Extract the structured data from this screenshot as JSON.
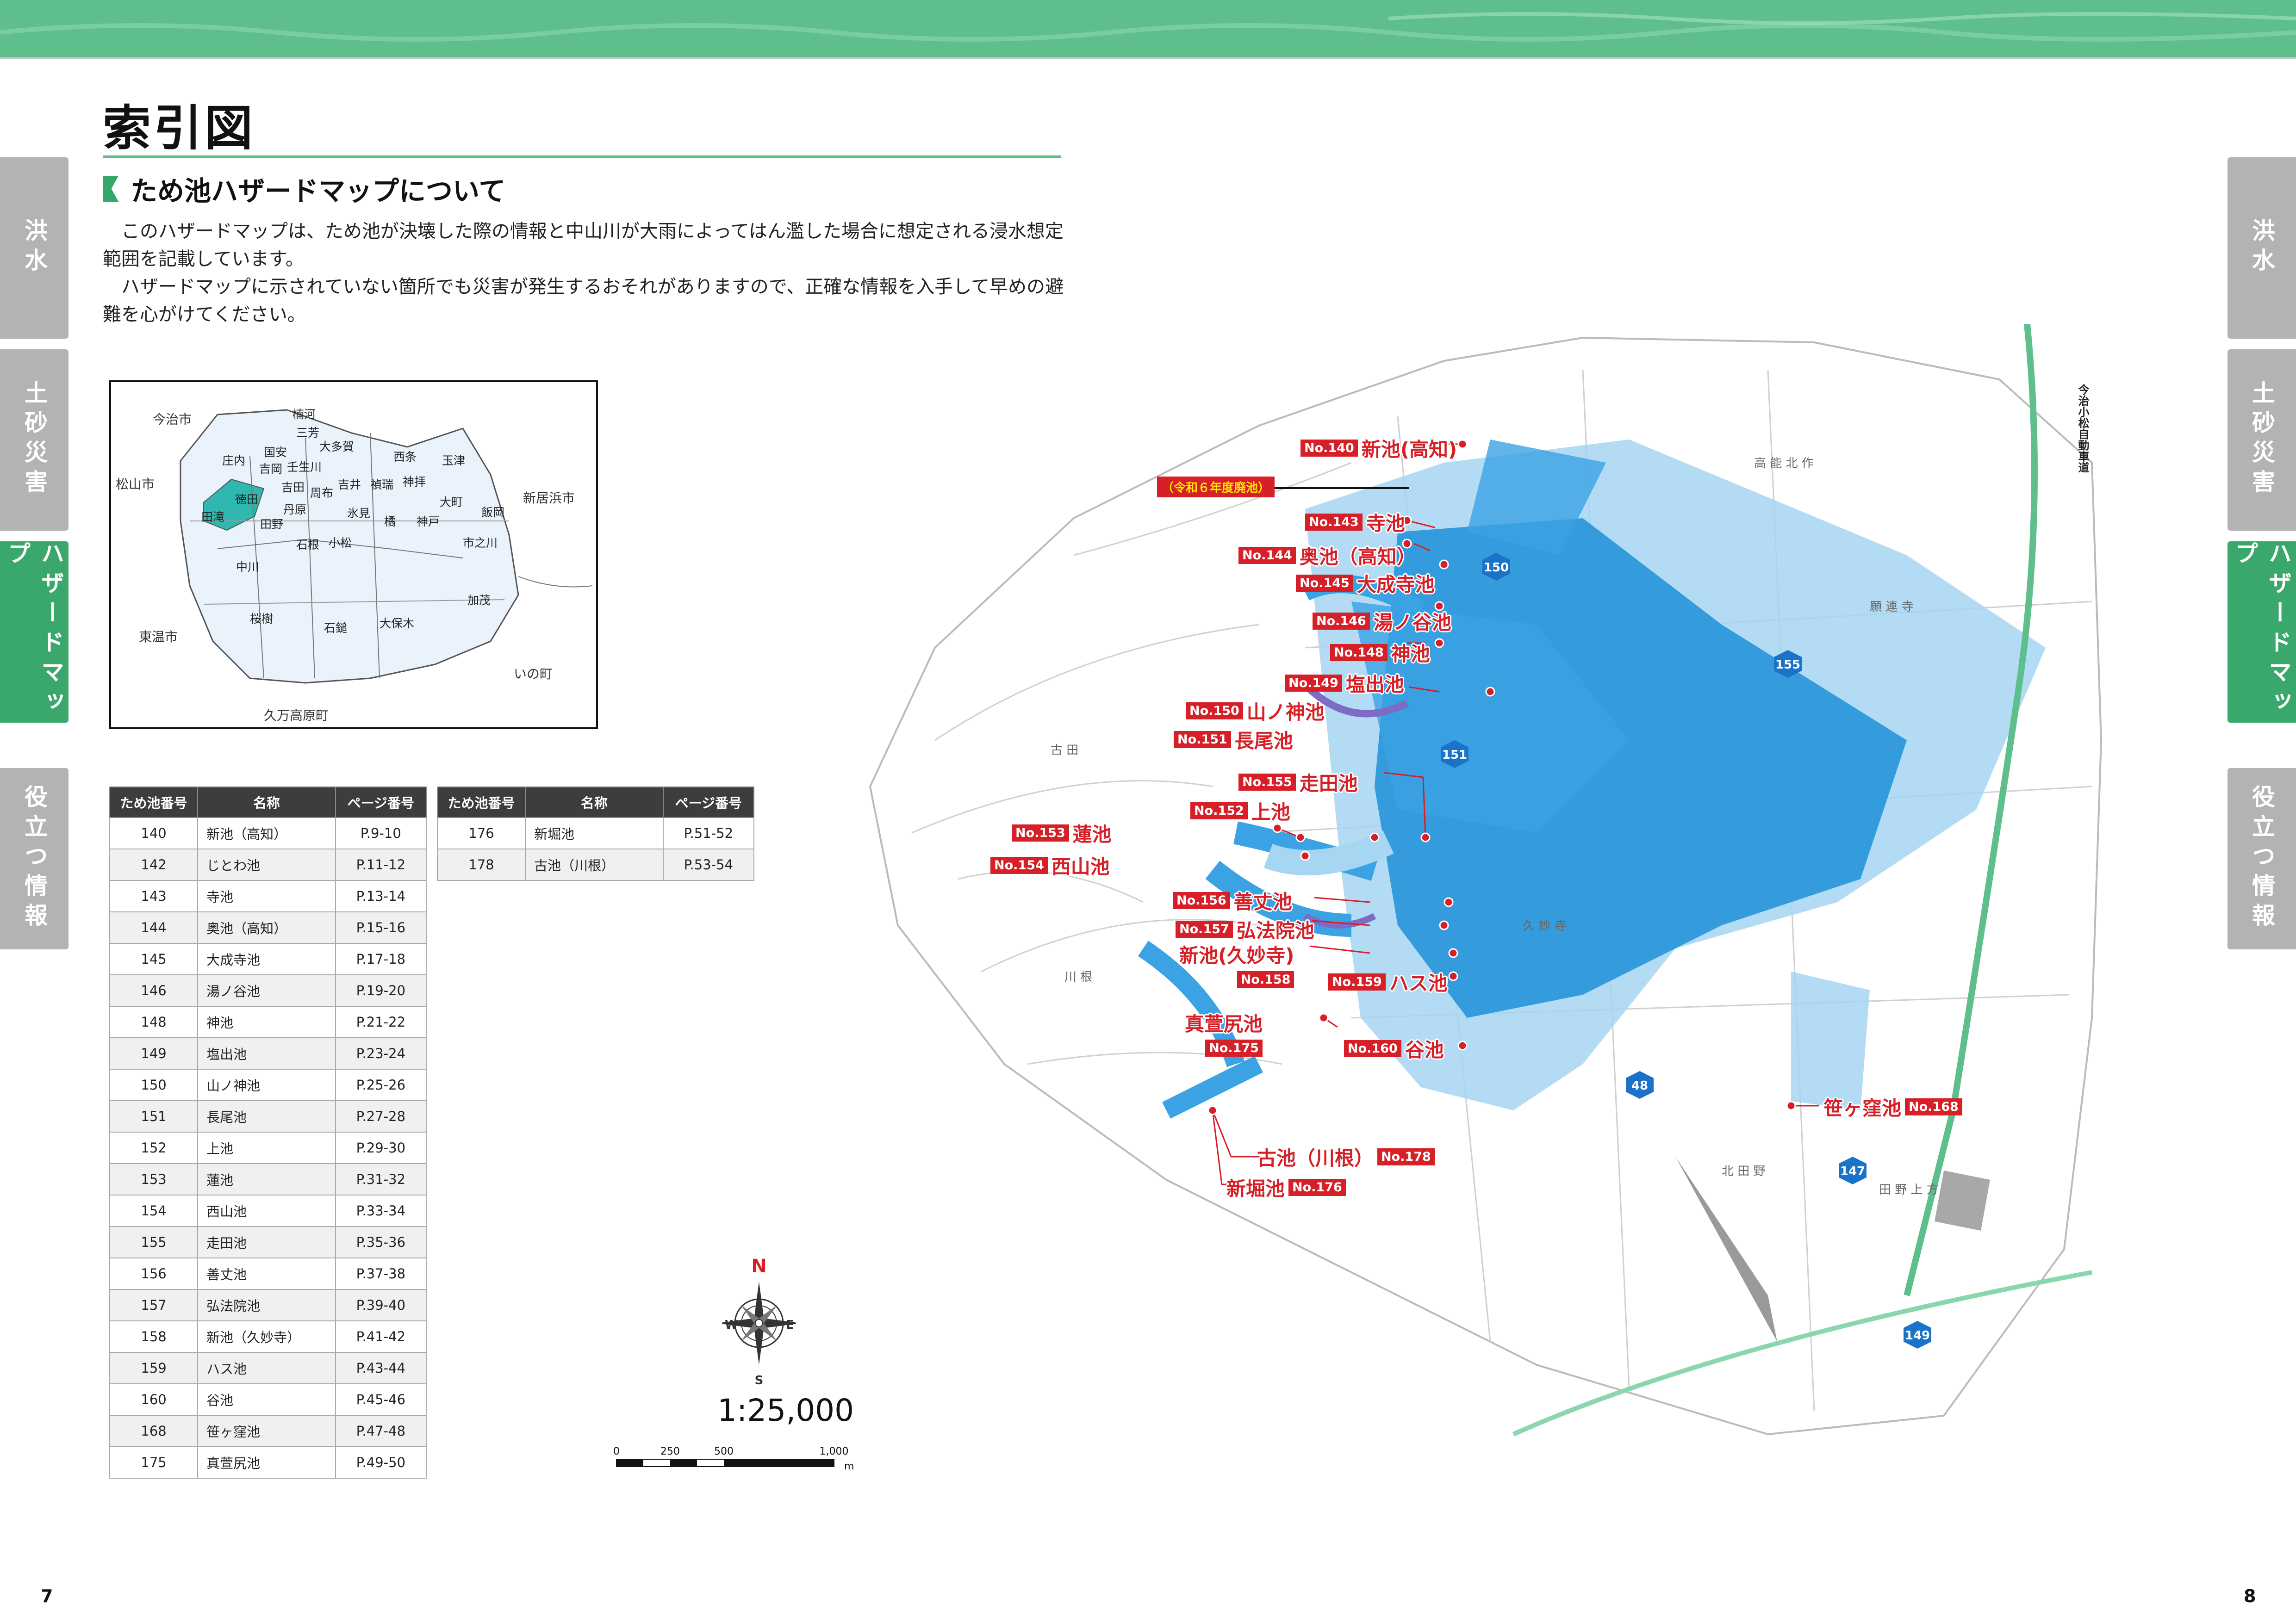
{
  "header": {
    "page_title": "索引図",
    "section_title": "ため池ハザードマップについて"
  },
  "intro": {
    "paragraphs": [
      "このハザードマップは、ため池が決壊した際の情報と中山川が大雨によってはん濫した場合に想定される浸水想定範囲を記載しています。",
      "ハザードマップに示されていない箇所でも災害が発生するおそれがありますので、正確な情報を入手して早めの避難を心がけてください。"
    ]
  },
  "side_tabs": [
    {
      "label": "洪水",
      "active": false
    },
    {
      "label": "土砂災害",
      "active": false
    },
    {
      "label": "ハザードマップ",
      "active": true
    },
    {
      "label": "役立つ情報",
      "active": false
    }
  ],
  "keymap": {
    "outside_labels": [
      "今治市",
      "松山市",
      "新居浜市",
      "東温市",
      "いの町",
      "久万高原町"
    ],
    "districts": [
      "楠河",
      "三芳",
      "国安",
      "大多賀",
      "庄内",
      "吉岡",
      "壬生川",
      "西条",
      "玉津",
      "吉田",
      "周布",
      "吉井",
      "禎瑞",
      "神拝",
      "大町",
      "飯岡",
      "田滝",
      "徳田",
      "丹原",
      "氷見",
      "橘",
      "神戸",
      "田野",
      "石根",
      "小松",
      "市之川",
      "中川",
      "加茂",
      "桜樹",
      "石鎚",
      "大保木"
    ]
  },
  "table_headers": [
    "ため池番号",
    "名称",
    "ページ番号"
  ],
  "ponds_left": [
    {
      "no": "140",
      "name": "新池（高知）",
      "page": "P.9-10"
    },
    {
      "no": "142",
      "name": "じとわ池",
      "page": "P.11-12"
    },
    {
      "no": "143",
      "name": "寺池",
      "page": "P.13-14"
    },
    {
      "no": "144",
      "name": "奥池（高知）",
      "page": "P.15-16"
    },
    {
      "no": "145",
      "name": "大成寺池",
      "page": "P.17-18"
    },
    {
      "no": "146",
      "name": "湯ノ谷池",
      "page": "P.19-20"
    },
    {
      "no": "148",
      "name": "神池",
      "page": "P.21-22"
    },
    {
      "no": "149",
      "name": "塩出池",
      "page": "P.23-24"
    },
    {
      "no": "150",
      "name": "山ノ神池",
      "page": "P.25-26"
    },
    {
      "no": "151",
      "name": "長尾池",
      "page": "P.27-28"
    },
    {
      "no": "152",
      "name": "上池",
      "page": "P.29-30"
    },
    {
      "no": "153",
      "name": "蓮池",
      "page": "P.31-32"
    },
    {
      "no": "154",
      "name": "西山池",
      "page": "P.33-34"
    },
    {
      "no": "155",
      "name": "走田池",
      "page": "P.35-36"
    },
    {
      "no": "156",
      "name": "善丈池",
      "page": "P.37-38"
    },
    {
      "no": "157",
      "name": "弘法院池",
      "page": "P.39-40"
    },
    {
      "no": "158",
      "name": "新池（久妙寺）",
      "page": "P.41-42"
    },
    {
      "no": "159",
      "name": "ハス池",
      "page": "P.43-44"
    },
    {
      "no": "160",
      "name": "谷池",
      "page": "P.45-46"
    },
    {
      "no": "168",
      "name": "笹ヶ窪池",
      "page": "P.47-48"
    },
    {
      "no": "175",
      "name": "真萱尻池",
      "page": "P.49-50"
    }
  ],
  "ponds_right": [
    {
      "no": "176",
      "name": "新堀池",
      "page": "P.51-52"
    },
    {
      "no": "178",
      "name": "古池（川根）",
      "page": "P.53-54"
    }
  ],
  "map": {
    "retired_tag": "（令和６年度廃池）",
    "labels": [
      {
        "no": "No.140",
        "name": "新池(高知)"
      },
      {
        "no": "No.143",
        "name": "寺池"
      },
      {
        "no": "No.144",
        "name": "奥池（高知）"
      },
      {
        "no": "No.145",
        "name": "大成寺池"
      },
      {
        "no": "No.146",
        "name": "湯ノ谷池"
      },
      {
        "no": "No.148",
        "name": "神池"
      },
      {
        "no": "No.149",
        "name": "塩出池"
      },
      {
        "no": "No.150",
        "name": "山ノ神池"
      },
      {
        "no": "No.151",
        "name": "長尾池"
      },
      {
        "no": "No.155",
        "name": "走田池"
      },
      {
        "no": "No.152",
        "name": "上池"
      },
      {
        "no": "No.153",
        "name": "蓮池"
      },
      {
        "no": "No.154",
        "name": "西山池"
      },
      {
        "no": "No.156",
        "name": "善丈池"
      },
      {
        "no": "No.157",
        "name": "弘法院池"
      },
      {
        "no": "No.158",
        "name": "新池(久妙寺)"
      },
      {
        "no": "No.159",
        "name": "ハス池"
      },
      {
        "no": "No.175",
        "name": "真萱尻池"
      },
      {
        "no": "No.160",
        "name": "谷池"
      },
      {
        "no": "No.168",
        "name": "笹ヶ窪池"
      },
      {
        "no": "No.178",
        "name": "古池（川根）"
      },
      {
        "no": "No.176",
        "name": "新堀池"
      }
    ],
    "place_names": [
      "古 田",
      "川 根",
      "北 田 野",
      "田 野 上 方",
      "久 妙 寺",
      "願 連 寺",
      "高 能 北 作",
      "今治小松自動車道"
    ],
    "route_numbers": [
      "150",
      "155",
      "151",
      "48",
      "147",
      "149"
    ],
    "compass": {
      "n": "N",
      "s": "S",
      "e": "E",
      "w": "W"
    },
    "scale_ratio": "1:25,000",
    "scale_ticks": [
      "0",
      "250",
      "500",
      "1,000"
    ],
    "scale_unit": "m"
  },
  "page_numbers": {
    "left": "7",
    "right": "8"
  },
  "colors": {
    "accent": "#5fbf8c",
    "tab_active": "#3aa86d",
    "tab_inactive": "#b3b3b3",
    "label_red": "#d61f26",
    "flood_dark": "#1d8fd8",
    "flood_light": "#a6d6f2"
  }
}
